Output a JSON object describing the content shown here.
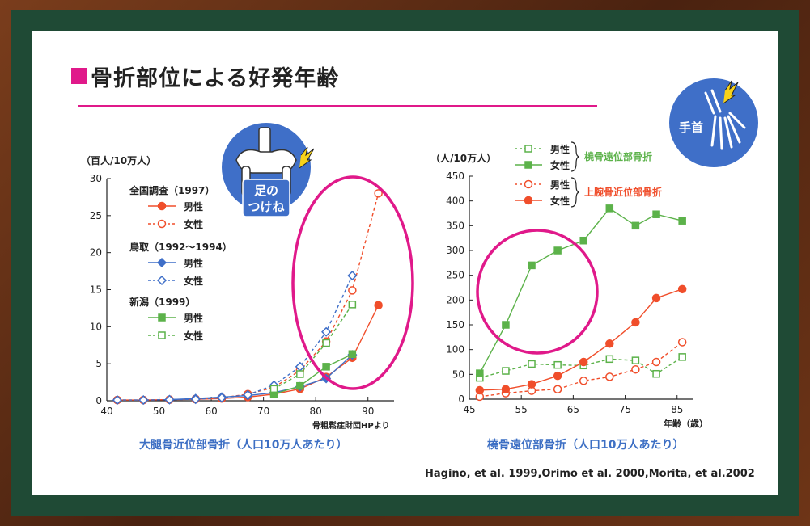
{
  "title": "骨折部位による好発年齢",
  "left_badge": {
    "line1": "足の",
    "line2": "つけね"
  },
  "right_badge": {
    "label": "手首"
  },
  "left_caption": "大腿骨近位部骨折（人口10万人あたり）",
  "right_caption": "橈骨遠位部骨折（人口10万人あたり）",
  "references": "Hagino, et al. 1999,Orimo et al. 2000,Morita, et al.2002",
  "colors": {
    "red": "#f04e2b",
    "blue": "#3f6fc8",
    "green": "#5cb24a",
    "magenta": "#e0198a",
    "badge": "#3f6fc8"
  },
  "chart_data": [
    {
      "type": "line",
      "ylabel": "（百人/10万人）",
      "source_note": "骨粗鬆症財団HPより",
      "xlim": [
        40,
        95
      ],
      "ylim": [
        0,
        30
      ],
      "xticks": [
        40,
        50,
        60,
        70,
        80,
        90
      ],
      "yticks": [
        0,
        5,
        10,
        15,
        20,
        25,
        30
      ],
      "legend_groups": [
        "全国調査（1997）",
        "鳥取（1992〜1994）",
        "新潟（1999）"
      ],
      "series": [
        {
          "group": "全国調査（1997）",
          "name": "男性",
          "color": "#f04e2b",
          "marker": "circle-filled",
          "dash": false,
          "x": [
            42,
            47,
            52,
            57,
            62,
            67,
            72,
            77,
            82,
            87,
            92
          ],
          "y": [
            0.1,
            0.1,
            0.15,
            0.2,
            0.3,
            0.5,
            0.9,
            1.6,
            3.2,
            5.8,
            12.9
          ]
        },
        {
          "group": "全国調査（1997）",
          "name": "女性",
          "color": "#f04e2b",
          "marker": "circle-open",
          "dash": true,
          "x": [
            42,
            47,
            52,
            57,
            62,
            67,
            72,
            77,
            82,
            87,
            92
          ],
          "y": [
            0.1,
            0.1,
            0.15,
            0.25,
            0.4,
            0.9,
            1.8,
            4.1,
            8.0,
            14.9,
            28.0
          ]
        },
        {
          "group": "鳥取（1992〜1994）",
          "name": "男性",
          "color": "#3f6fc8",
          "marker": "diamond-filled",
          "dash": false,
          "x": [
            52,
            57,
            62,
            67,
            72,
            77,
            82,
            87
          ],
          "y": [
            0.15,
            0.3,
            0.5,
            0.7,
            1.1,
            1.9,
            3.0,
            6.2
          ]
        },
        {
          "group": "鳥取（1992〜1994）",
          "name": "女性",
          "color": "#3f6fc8",
          "marker": "diamond-open",
          "dash": true,
          "x": [
            42,
            47,
            52,
            57,
            62,
            67,
            72,
            77,
            82,
            87
          ],
          "y": [
            0.1,
            0.1,
            0.15,
            0.2,
            0.4,
            0.8,
            2.1,
            4.6,
            9.3,
            16.9
          ]
        },
        {
          "group": "新潟（1999）",
          "name": "男性",
          "color": "#5cb24a",
          "marker": "square-filled",
          "dash": false,
          "x": [
            72,
            77,
            82,
            87
          ],
          "y": [
            0.9,
            2.0,
            4.6,
            6.3
          ]
        },
        {
          "group": "新潟（1999）",
          "name": "女性",
          "color": "#5cb24a",
          "marker": "square-open",
          "dash": true,
          "x": [
            72,
            77,
            82,
            87
          ],
          "y": [
            1.6,
            3.6,
            7.8,
            13.0
          ]
        }
      ]
    },
    {
      "type": "line",
      "ylabel": "（人/10万人）",
      "xlabel": "年齢（歳）",
      "xlim": [
        45,
        88
      ],
      "ylim": [
        0,
        450
      ],
      "xticks": [
        45,
        55,
        65,
        75,
        85
      ],
      "yticks": [
        0,
        50,
        100,
        150,
        200,
        250,
        300,
        350,
        400,
        450
      ],
      "legend_groups": [
        "橈骨遠位部骨折",
        "上腕骨近位部骨折"
      ],
      "series": [
        {
          "group": "橈骨遠位部骨折",
          "name": "男性",
          "color": "#5cb24a",
          "marker": "square-open",
          "dash": true,
          "x": [
            47,
            52,
            57,
            62,
            67,
            72,
            77,
            81,
            86
          ],
          "y": [
            43,
            57,
            71,
            69,
            68,
            81,
            78,
            51,
            85
          ]
        },
        {
          "group": "橈骨遠位部骨折",
          "name": "女性",
          "color": "#5cb24a",
          "marker": "square-filled",
          "dash": false,
          "x": [
            47,
            52,
            57,
            62,
            67,
            72,
            77,
            81,
            86
          ],
          "y": [
            52,
            150,
            270,
            300,
            320,
            385,
            350,
            373,
            360
          ]
        },
        {
          "group": "上腕骨近位部骨折",
          "name": "男性",
          "color": "#f04e2b",
          "marker": "circle-open",
          "dash": true,
          "x": [
            47,
            52,
            57,
            62,
            67,
            72,
            77,
            81,
            86
          ],
          "y": [
            5,
            12,
            17,
            20,
            37,
            45,
            60,
            75,
            115
          ]
        },
        {
          "group": "上腕骨近位部骨折",
          "name": "女性",
          "color": "#f04e2b",
          "marker": "circle-filled",
          "dash": false,
          "x": [
            47,
            52,
            57,
            62,
            67,
            72,
            77,
            81,
            86
          ],
          "y": [
            18,
            20,
            30,
            47,
            75,
            112,
            155,
            204,
            222
          ]
        }
      ]
    }
  ]
}
